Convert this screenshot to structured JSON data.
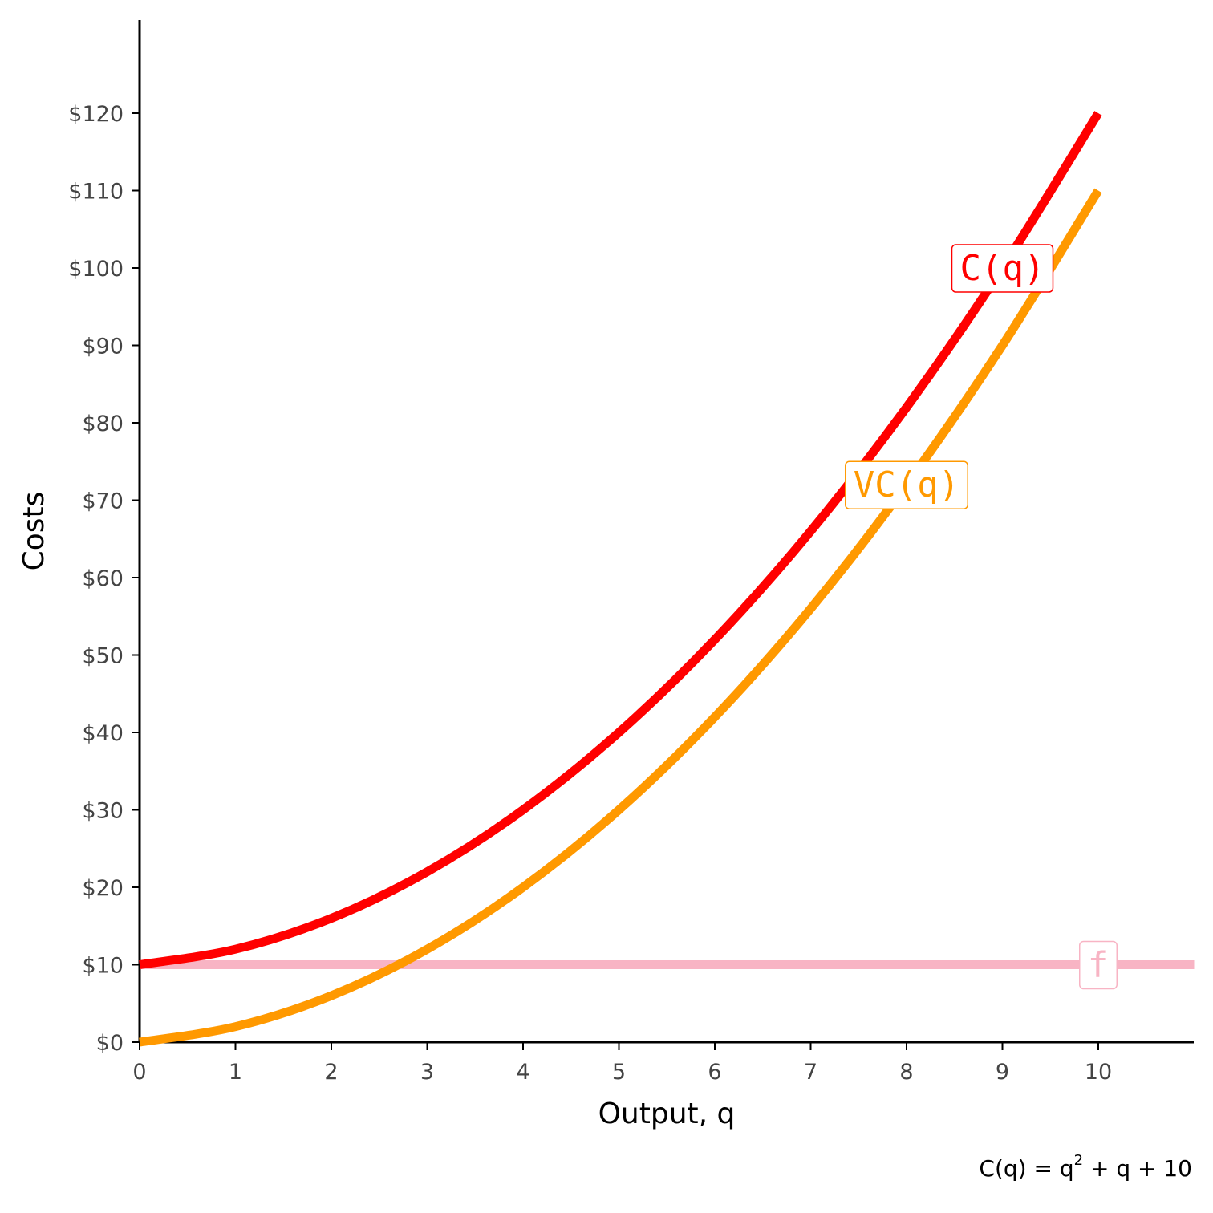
{
  "chart_data": {
    "type": "line",
    "xlabel": "Output, q",
    "ylabel": "Costs",
    "xlim": [
      0,
      11
    ],
    "ylim": [
      0,
      132
    ],
    "x_ticks": [
      0,
      1,
      2,
      3,
      4,
      5,
      6,
      7,
      8,
      9,
      10
    ],
    "y_ticks": [
      0,
      10,
      20,
      30,
      40,
      50,
      60,
      70,
      80,
      90,
      100,
      110,
      120
    ],
    "y_tick_labels": [
      "$0",
      "$10",
      "$20",
      "$30",
      "$40",
      "$50",
      "$60",
      "$70",
      "$80",
      "$90",
      "$100",
      "$110",
      "$120"
    ],
    "grid": false,
    "legend": "none",
    "series": [
      {
        "label": "C(q)",
        "color": "#ff0000",
        "x": [
          0,
          1,
          2,
          3,
          4,
          5,
          6,
          7,
          8,
          9,
          10
        ],
        "y": [
          10,
          12,
          16,
          22,
          30,
          40,
          52,
          66,
          82,
          100,
          120
        ],
        "label_at": [
          9,
          100
        ]
      },
      {
        "label": "VC(q)",
        "color": "#ff9900",
        "x": [
          0,
          1,
          2,
          3,
          4,
          5,
          6,
          7,
          8,
          9,
          10
        ],
        "y": [
          0,
          2,
          6,
          12,
          20,
          30,
          42,
          56,
          72,
          90,
          110
        ],
        "label_at": [
          8,
          72
        ]
      },
      {
        "label": "f",
        "color": "#f8b4c4",
        "x": [
          0,
          11
        ],
        "y": [
          10,
          10
        ],
        "label_at": [
          10,
          10
        ]
      }
    ],
    "caption": {
      "prefix": "C(q) = q",
      "superscript": "2",
      "suffix": " + q + 10"
    }
  }
}
